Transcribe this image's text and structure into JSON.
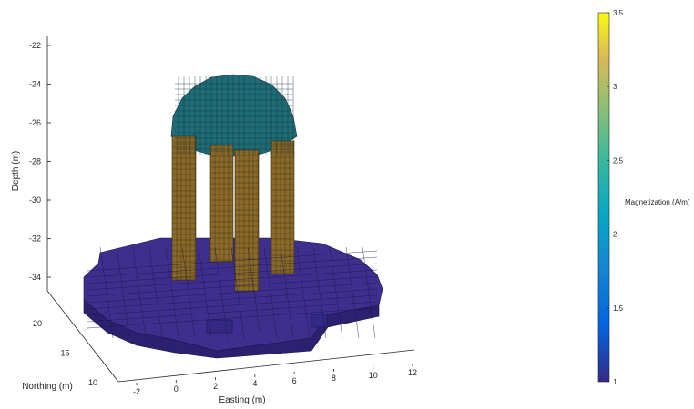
{
  "chart_data": {
    "type": "voxel-3d",
    "title": "",
    "xlabel": "Easting (m)",
    "ylabel": "Northing (m)",
    "zlabel": "Depth (m)",
    "xticks": [
      -2,
      0,
      2,
      4,
      6,
      8,
      10,
      12
    ],
    "yticks": [
      10,
      15,
      20
    ],
    "zticks": [
      -22,
      -24,
      -26,
      -28,
      -30,
      -32,
      -34
    ],
    "xlim": [
      -2,
      12
    ],
    "ylim": [
      10,
      20
    ],
    "zlim": [
      -34,
      -22
    ],
    "grid": false,
    "colorbar": {
      "label": "Magnetization (A/m)",
      "ticks": [
        1,
        1.5,
        2,
        2.5,
        3,
        3.5
      ],
      "range": [
        1,
        3.5
      ],
      "colormap": "parula"
    },
    "bodies": [
      {
        "name": "base slab",
        "magnetization": 1.0,
        "color": "#3e2f8f"
      },
      {
        "name": "columns",
        "magnetization": 3.3,
        "color": "#8a6a2a"
      },
      {
        "name": "dome",
        "magnetization": 2.3,
        "color": "#1f6c77"
      }
    ]
  }
}
